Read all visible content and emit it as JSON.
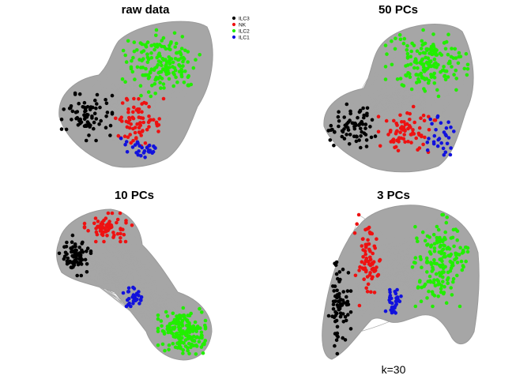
{
  "legend": [
    {
      "label": "ILC3",
      "color": "#000000"
    },
    {
      "label": "NK",
      "color": "#ee1111"
    },
    {
      "label": "ILC2",
      "color": "#22ee00"
    },
    {
      "label": "ILC1",
      "color": "#1111dd"
    }
  ],
  "panels": [
    {
      "title": "raw data"
    },
    {
      "title": "50 PCs"
    },
    {
      "title": "10 PCs"
    },
    {
      "title": "3 PCs"
    }
  ],
  "caption": "k=30",
  "colors": {
    "edge": "#a6a6a6",
    "background": "#ffffff"
  }
}
